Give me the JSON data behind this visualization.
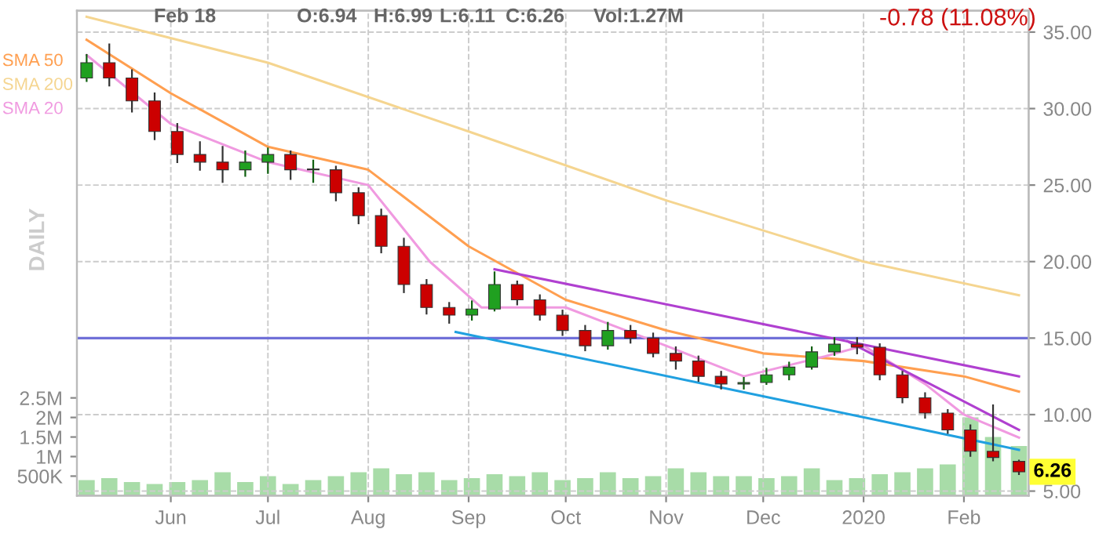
{
  "chart_data": {
    "type": "candlestick",
    "x": [
      "2019-05-06",
      "2019-05-13",
      "2019-05-20",
      "2019-05-27",
      "2019-06-03",
      "2019-06-10",
      "2019-06-17",
      "2019-06-24",
      "2019-07-01",
      "2019-07-08",
      "2019-07-15",
      "2019-07-22",
      "2019-07-29",
      "2019-08-05",
      "2019-08-12",
      "2019-08-19",
      "2019-08-26",
      "2019-09-02",
      "2019-09-09",
      "2019-09-16",
      "2019-09-23",
      "2019-09-30",
      "2019-10-07",
      "2019-10-14",
      "2019-10-21",
      "2019-10-28",
      "2019-11-04",
      "2019-11-11",
      "2019-11-18",
      "2019-11-25",
      "2019-12-02",
      "2019-12-09",
      "2019-12-16",
      "2019-12-23",
      "2019-12-30",
      "2020-01-06",
      "2020-01-13",
      "2020-01-20",
      "2020-01-27",
      "2020-02-03",
      "2020-02-10",
      "2020-02-18"
    ],
    "ohlc": [
      [
        32.0,
        33.5,
        31.8,
        33.0
      ],
      [
        33.0,
        34.2,
        31.5,
        32.0
      ],
      [
        32.0,
        32.5,
        29.8,
        30.5
      ],
      [
        30.5,
        31.0,
        28.0,
        28.5
      ],
      [
        28.5,
        29.0,
        26.5,
        27.0
      ],
      [
        27.0,
        27.8,
        26.0,
        26.5
      ],
      [
        26.5,
        27.5,
        25.2,
        26.0
      ],
      [
        26.0,
        27.2,
        25.6,
        26.5
      ],
      [
        26.5,
        27.4,
        25.8,
        27.0
      ],
      [
        27.0,
        27.2,
        25.4,
        26.0
      ],
      [
        26.0,
        26.6,
        25.2,
        26.0
      ],
      [
        26.0,
        26.2,
        24.0,
        24.5
      ],
      [
        24.5,
        24.8,
        22.5,
        23.0
      ],
      [
        23.0,
        23.4,
        20.6,
        21.0
      ],
      [
        21.0,
        21.5,
        18.0,
        18.5
      ],
      [
        18.5,
        18.8,
        16.6,
        17.0
      ],
      [
        17.0,
        17.3,
        16.0,
        16.5
      ],
      [
        16.5,
        17.4,
        16.2,
        16.9
      ],
      [
        16.9,
        19.3,
        16.8,
        18.5
      ],
      [
        18.5,
        18.7,
        17.2,
        17.5
      ],
      [
        17.5,
        17.8,
        16.2,
        16.5
      ],
      [
        16.5,
        16.8,
        15.2,
        15.5
      ],
      [
        15.5,
        15.8,
        14.2,
        14.5
      ],
      [
        14.5,
        16.0,
        14.3,
        15.5
      ],
      [
        15.5,
        15.8,
        14.7,
        15.0
      ],
      [
        15.0,
        15.3,
        13.8,
        14.0
      ],
      [
        14.0,
        14.4,
        13.0,
        13.5
      ],
      [
        13.5,
        13.8,
        12.2,
        12.5
      ],
      [
        12.5,
        12.8,
        11.7,
        12.0
      ],
      [
        12.0,
        12.4,
        11.7,
        12.1
      ],
      [
        12.1,
        13.0,
        12.0,
        12.6
      ],
      [
        12.6,
        13.4,
        12.3,
        13.1
      ],
      [
        13.1,
        14.4,
        13.0,
        14.1
      ],
      [
        14.1,
        15.0,
        13.9,
        14.6
      ],
      [
        14.6,
        15.0,
        14.0,
        14.4
      ],
      [
        14.4,
        14.6,
        12.3,
        12.6
      ],
      [
        12.6,
        12.8,
        10.8,
        11.1
      ],
      [
        11.1,
        11.4,
        9.8,
        10.1
      ],
      [
        10.1,
        10.3,
        8.8,
        9.0
      ],
      [
        9.0,
        9.3,
        7.3,
        7.6
      ],
      [
        7.6,
        10.6,
        7.0,
        7.2
      ],
      [
        6.94,
        6.99,
        6.11,
        6.26
      ]
    ],
    "series": [
      {
        "name": "SMA 50",
        "type": "line",
        "color": "#ff9f50",
        "x": [
          "2019-05-06",
          "2019-06-01",
          "2019-07-01",
          "2019-08-01",
          "2019-09-01",
          "2019-10-01",
          "2019-11-01",
          "2019-12-01",
          "2020-01-01",
          "2020-02-01",
          "2020-02-18"
        ],
        "values": [
          34.5,
          31.0,
          27.5,
          26.0,
          21.0,
          17.5,
          15.5,
          14.0,
          13.5,
          12.5,
          11.5
        ]
      },
      {
        "name": "SMA 200",
        "type": "line",
        "color": "#f5d590",
        "x": [
          "2019-05-06",
          "2019-07-01",
          "2019-09-01",
          "2019-11-01",
          "2020-01-01",
          "2020-02-18"
        ],
        "values": [
          36.0,
          33.0,
          28.5,
          24.0,
          20.0,
          17.8
        ]
      },
      {
        "name": "SMA 20",
        "type": "line",
        "color": "#f09ae0",
        "x": [
          "2019-05-06",
          "2019-06-01",
          "2019-07-01",
          "2019-08-01",
          "2019-08-20",
          "2019-09-05",
          "2019-10-01",
          "2019-11-01",
          "2019-11-25",
          "2019-12-20",
          "2020-01-01",
          "2020-01-20",
          "2020-02-01",
          "2020-02-18"
        ],
        "values": [
          33.5,
          29.0,
          26.5,
          25.0,
          20.0,
          17.0,
          17.0,
          14.5,
          12.5,
          13.8,
          14.5,
          12.0,
          10.0,
          8.5
        ]
      },
      {
        "type": "line",
        "color": "#b040d0",
        "x": [
          "2019-09-09",
          "2020-02-18"
        ],
        "values": [
          19.5,
          12.5
        ]
      },
      {
        "type": "line",
        "color": "#b040d0",
        "x": [
          "2019-12-27",
          "2020-02-18"
        ],
        "values": [
          14.8,
          9.0
        ]
      },
      {
        "type": "line",
        "color": "#20a0e0",
        "x": [
          "2019-08-28",
          "2020-02-18"
        ],
        "values": [
          15.4,
          7.7
        ]
      },
      {
        "type": "bar",
        "axis": "y2",
        "color": "#a8dca8",
        "x": [
          "2019-05-06",
          "2019-05-13",
          "2019-05-20",
          "2019-05-27",
          "2019-06-03",
          "2019-06-10",
          "2019-06-17",
          "2019-06-24",
          "2019-07-01",
          "2019-07-08",
          "2019-07-15",
          "2019-07-22",
          "2019-07-29",
          "2019-08-05",
          "2019-08-12",
          "2019-08-19",
          "2019-08-26",
          "2019-09-02",
          "2019-09-09",
          "2019-09-16",
          "2019-09-23",
          "2019-09-30",
          "2019-10-07",
          "2019-10-14",
          "2019-10-21",
          "2019-10-28",
          "2019-11-04",
          "2019-11-11",
          "2019-11-18",
          "2019-11-25",
          "2019-12-02",
          "2019-12-09",
          "2019-12-16",
          "2019-12-23",
          "2019-12-30",
          "2020-01-06",
          "2020-01-13",
          "2020-01-20",
          "2020-01-27",
          "2020-02-03",
          "2020-02-10",
          "2020-02-18"
        ],
        "values": [
          400000,
          450000,
          350000,
          300000,
          350000,
          400000,
          600000,
          350000,
          500000,
          300000,
          400000,
          500000,
          600000,
          700000,
          550000,
          600000,
          400000,
          450000,
          550000,
          500000,
          600000,
          400000,
          450000,
          600000,
          450000,
          500000,
          700000,
          600000,
          500000,
          500000,
          450000,
          500000,
          700000,
          400000,
          450000,
          550000,
          600000,
          700000,
          800000,
          2000000,
          1500000,
          1270000
        ]
      }
    ],
    "ylim": [
      4.7,
      36.4
    ],
    "yticks": [
      {
        "value": 5,
        "label": "5.00"
      },
      {
        "value": 10,
        "label": "10.00"
      },
      {
        "value": 15,
        "label": "15.00"
      },
      {
        "value": 20,
        "label": "20.00"
      },
      {
        "value": 25,
        "label": "25.00"
      },
      {
        "value": 30,
        "label": "30.00"
      },
      {
        "value": 35,
        "label": "35.00"
      }
    ],
    "y2lim": [
      0,
      12400000
    ],
    "y2ticks": [
      {
        "value": 500000,
        "label": "500K"
      },
      {
        "value": 1000000,
        "label": "1M"
      },
      {
        "value": 1500000,
        "label": "1.5M"
      },
      {
        "value": 2000000,
        "label": "2M"
      },
      {
        "value": 2500000,
        "label": "2.5M"
      }
    ],
    "xlim": [
      "2019-05-03",
      "2020-02-21"
    ],
    "xticks": [
      {
        "value": "2019-06-01",
        "label": "Jun"
      },
      {
        "value": "2019-07-01",
        "label": "Jul"
      },
      {
        "value": "2019-08-01",
        "label": "Aug"
      },
      {
        "value": "2019-09-01",
        "label": "Sep"
      },
      {
        "value": "2019-10-01",
        "label": "Oct"
      },
      {
        "value": "2019-11-01",
        "label": "Nov"
      },
      {
        "value": "2019-12-01",
        "label": "Dec"
      },
      {
        "value": "2020-01-01",
        "label": "2020"
      },
      {
        "value": "2020-02-01",
        "label": "Feb"
      }
    ],
    "ref_lines": [
      {
        "axis": "y",
        "value": 15,
        "color": "#7070d8"
      }
    ],
    "grid": true,
    "legend": "top left",
    "annotations": [
      "Feb 18",
      "O:6.94",
      "H:6.99",
      "L:6.11",
      "C:6.26",
      "Vol:1.27M",
      "-0.78 (11.08%)",
      "DAILY",
      {
        "text": "6.26",
        "x": "2020-02-18",
        "y": 6.26
      }
    ]
  }
}
